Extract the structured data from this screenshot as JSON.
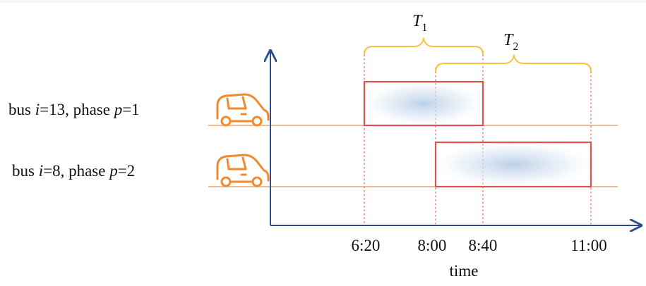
{
  "rows": [
    {
      "pre": "bus ",
      "var1": "i",
      "mid": "=13, phase ",
      "var2": "p",
      "post": "=1",
      "interval": [
        "6:20",
        "8:40"
      ]
    },
    {
      "pre": "bus ",
      "var1": "i",
      "mid": "=8, phase ",
      "var2": "p",
      "post": "=2",
      "interval": [
        "8:00",
        "11:00"
      ]
    }
  ],
  "braces": [
    {
      "symbol": "T",
      "subscript": "1",
      "from": "6:20",
      "to": "8:40"
    },
    {
      "symbol": "T",
      "subscript": "2",
      "from": "8:00",
      "to": "11:00"
    }
  ],
  "ticks": [
    "6:20",
    "8:00",
    "8:40",
    "11:00"
  ],
  "axis_label": "time",
  "icon": "car-icon",
  "colors": {
    "axis": "#2b4f8c",
    "car": "#f08a2c",
    "row_line": "#f6b98a",
    "box_stroke": "#d9534f",
    "box_fill": "#c9d9ec",
    "brace": "#f5c242",
    "guide": "#e07070"
  }
}
